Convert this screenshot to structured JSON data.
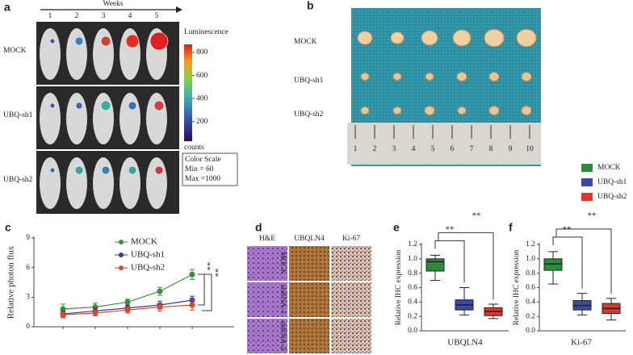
{
  "panel_labels": [
    "a",
    "b",
    "c",
    "d",
    "e",
    "f"
  ],
  "panel_a": {
    "x_label": "Weeks",
    "weeks": [
      "1",
      "2",
      "3",
      "4",
      "5"
    ],
    "rows": [
      "MOCK",
      "UBQ-sh1",
      "UBQ-sh2"
    ],
    "colorbar": {
      "title": "Luminescence",
      "lim": [
        30,
        870
      ],
      "ticks": [
        800,
        600,
        400,
        200
      ],
      "unit": "counts",
      "scale_title": "Color Scale",
      "min": "Min = 60",
      "max": "Max =1000"
    }
  },
  "panel_b": {
    "rows": [
      "MOCK",
      "UBQ-sh1",
      "UBQ-sh2"
    ],
    "ruler": [
      "1",
      "2",
      "3",
      "4",
      "5",
      "6",
      "7",
      "8",
      "9",
      "10"
    ]
  },
  "panel_d": {
    "columns": [
      "H&E",
      "UBQLN4",
      "Ki-67"
    ],
    "rows": [
      "MOCK",
      "shRNA-1",
      "shRNA-2"
    ]
  },
  "chart_data": [
    {
      "type": "line",
      "ylabel": "Relative photon flux",
      "categories": [
        null,
        null,
        null,
        null,
        null
      ],
      "ylim": [
        0,
        9
      ],
      "yticks": [
        0,
        3,
        6,
        9
      ],
      "legend": "upper center",
      "annotations": [
        "**",
        "**"
      ],
      "series": [
        {
          "name": "MOCK",
          "color": "#3c8c3c",
          "values": [
            1.8,
            2.0,
            2.5,
            3.6,
            5.3
          ],
          "errors": [
            0.5,
            0.4,
            0.3,
            0.4,
            0.5
          ]
        },
        {
          "name": "UBQ-sh1",
          "color": "#3a3a9a",
          "values": [
            1.3,
            1.6,
            1.9,
            2.2,
            2.7
          ],
          "errors": [
            0.3,
            0.3,
            0.3,
            0.4,
            0.4
          ]
        },
        {
          "name": "UBQ-sh2",
          "color": "#d84a2a",
          "values": [
            1.2,
            1.4,
            1.7,
            2.0,
            2.2
          ],
          "errors": [
            0.3,
            0.3,
            0.3,
            0.4,
            0.5
          ]
        }
      ]
    },
    {
      "type": "box",
      "ylabel": "Relative IHC expression",
      "xlabel": "UBQLN4",
      "ylim": [
        0,
        1.2
      ],
      "yticks": [
        {
          "value": 0,
          "label": "0.0"
        },
        0.2,
        0.4,
        0.6,
        0.8,
        {
          "value": 1,
          "label": "1.0"
        },
        1.2
      ],
      "annotations": [
        "**",
        "**"
      ],
      "series": [
        {
          "color": "#2e8b3a",
          "box": {
            "min": 0.7,
            "q1": 0.83,
            "median": 0.96,
            "q3": 1.0,
            "max": 1.05
          }
        },
        {
          "color": "#3a4aa8",
          "box": {
            "min": 0.22,
            "q1": 0.29,
            "median": 0.36,
            "q3": 0.43,
            "max": 0.6
          }
        },
        {
          "color": "#e0362a",
          "box": {
            "min": 0.17,
            "q1": 0.21,
            "median": 0.27,
            "q3": 0.32,
            "max": 0.37
          }
        }
      ]
    },
    {
      "type": "box",
      "ylabel": "Relative IHC expression",
      "xlabel": "Ki-67",
      "ylim": [
        0,
        1.2
      ],
      "yticks": [
        {
          "value": 0,
          "label": "0.0"
        },
        0.2,
        0.4,
        0.6,
        0.8,
        {
          "value": 1,
          "label": "1.0"
        },
        1.2
      ],
      "annotations": [
        "**",
        "**"
      ],
      "legend": "outside upper right",
      "series": [
        {
          "name": "MOCK",
          "color": "#2e8b3a",
          "box": {
            "min": 0.65,
            "q1": 0.84,
            "median": 0.93,
            "q3": 1.0,
            "max": 1.1
          }
        },
        {
          "name": "UBQ-sh1",
          "color": "#3a4aa8",
          "box": {
            "min": 0.22,
            "q1": 0.29,
            "median": 0.35,
            "q3": 0.42,
            "max": 0.52
          }
        },
        {
          "name": "UBQ-sh2",
          "color": "#e0362a",
          "box": {
            "min": 0.15,
            "q1": 0.24,
            "median": 0.31,
            "q3": 0.38,
            "max": 0.45
          }
        }
      ]
    }
  ]
}
